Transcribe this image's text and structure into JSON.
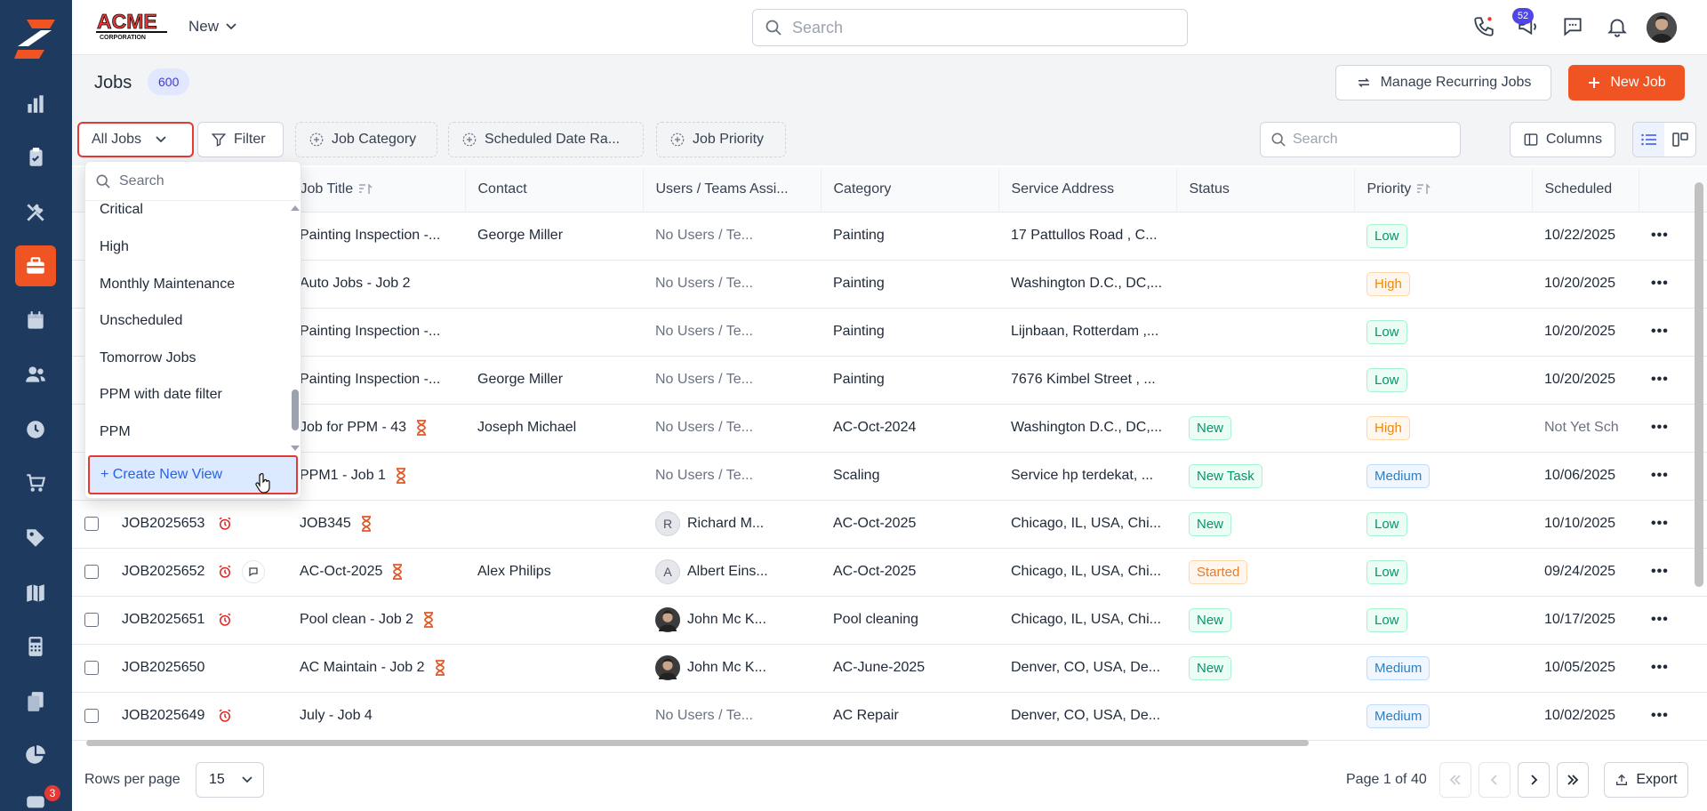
{
  "brand": {
    "logo_text": "ACME",
    "logo_subtext": "CORPORATION",
    "accent": "#f05423",
    "sidebar_bg": "#1e3a5f"
  },
  "sidebar": {
    "items": [
      {
        "icon": "bar-chart-icon"
      },
      {
        "icon": "clipboard-icon"
      },
      {
        "icon": "tools-icon"
      },
      {
        "icon": "briefcase-icon",
        "active": true
      },
      {
        "icon": "calendar-icon"
      },
      {
        "icon": "users-icon"
      },
      {
        "icon": "clock-icon"
      },
      {
        "icon": "cart-icon"
      },
      {
        "icon": "tag-icon"
      },
      {
        "icon": "map-icon"
      },
      {
        "icon": "calculator-icon"
      },
      {
        "icon": "documents-icon"
      },
      {
        "icon": "pie-chart-icon"
      },
      {
        "icon": "chat-icon"
      }
    ],
    "chat_badge": "3"
  },
  "topbar": {
    "new_label": "New",
    "search_placeholder": "Search",
    "notifications_count": "52"
  },
  "header": {
    "title": "Jobs",
    "count": "600",
    "recurring_label": "Manage Recurring Jobs",
    "new_job_label": "New Job"
  },
  "toolbar": {
    "view_label": "All Jobs",
    "filter_label": "Filter",
    "job_category_label": "Job Category",
    "scheduled_date_label": "Scheduled Date Ra...",
    "job_priority_label": "Job Priority",
    "search_placeholder": "Search",
    "columns_label": "Columns"
  },
  "views_dropdown": {
    "search_placeholder": "Search",
    "items": [
      "Critical",
      "High",
      "Monthly Maintenance",
      "Unscheduled",
      "Tomorrow Jobs",
      "PPM with date filter",
      "PPM"
    ],
    "create_label": "+ Create New View"
  },
  "table": {
    "columns": [
      "Job Title",
      "Contact",
      "Users / Teams Assi...",
      "Category",
      "Service Address",
      "Status",
      "Priority",
      "Scheduled"
    ],
    "rows": [
      {
        "id": "",
        "title": "Painting Inspection -...",
        "contact": "George Miller",
        "user": "No Users / Te...",
        "category": "Painting",
        "address": "17 Pattullos Road , C...",
        "status": "",
        "priority": "Low",
        "scheduled": "10/22/2025"
      },
      {
        "id": "",
        "title": "Auto Jobs - Job 2",
        "contact": "",
        "user": "No Users / Te...",
        "category": "Painting",
        "address": "Washington D.C., DC,...",
        "status": "",
        "priority": "High",
        "scheduled": "10/20/2025"
      },
      {
        "id": "",
        "title": "Painting Inspection -...",
        "contact": "",
        "user": "No Users / Te...",
        "category": "Painting",
        "address": "Lijnbaan, Rotterdam ,...",
        "status": "",
        "priority": "Low",
        "scheduled": "10/20/2025"
      },
      {
        "id": "",
        "title": "Painting Inspection -...",
        "contact": "George Miller",
        "user": "No Users / Te...",
        "category": "Painting",
        "address": "7676 Kimbel Street , ...",
        "status": "",
        "priority": "Low",
        "scheduled": "10/20/2025"
      },
      {
        "id": "",
        "title": "Job for PPM - 43",
        "contact": "Joseph Michael",
        "user": "No Users / Te...",
        "category": "AC-Oct-2024",
        "address": "Washington D.C., DC,...",
        "status": "New",
        "priority": "High",
        "scheduled": "Not Yet Sch"
      },
      {
        "id": "",
        "title": "PPM1 - Job 1",
        "contact": "",
        "user": "No Users / Te...",
        "category": "Scaling",
        "address": "Service hp terdekat, ...",
        "status": "New Task",
        "priority": "Medium",
        "scheduled": "10/06/2025"
      },
      {
        "id": "JOB2025653",
        "title": "JOB345",
        "contact": "",
        "user": "Richard M...",
        "user_initial": "R",
        "category": "AC-Oct-2025",
        "address": "Chicago, IL, USA, Chi...",
        "status": "New",
        "priority": "Low",
        "scheduled": "10/10/2025"
      },
      {
        "id": "JOB2025652",
        "title": "AC-Oct-2025",
        "contact": "Alex Philips",
        "user": "Albert Eins...",
        "user_initial": "A",
        "category": "AC-Oct-2025",
        "address": "Chicago, IL, USA, Chi...",
        "status": "Started",
        "priority": "Low",
        "scheduled": "09/24/2025"
      },
      {
        "id": "JOB2025651",
        "title": "Pool clean - Job 2",
        "contact": "",
        "user": "John Mc K...",
        "category": "Pool cleaning",
        "address": "Chicago, IL, USA, Chi...",
        "status": "New",
        "priority": "Low",
        "scheduled": "10/17/2025"
      },
      {
        "id": "JOB2025650",
        "title": "AC Maintain - Job 2",
        "contact": "",
        "user": "John Mc K...",
        "category": "AC-June-2025",
        "address": "Denver, CO, USA, De...",
        "status": "New",
        "priority": "Medium",
        "scheduled": "10/05/2025"
      },
      {
        "id": "JOB2025649",
        "title": "July - Job 4",
        "contact": "",
        "user": "No Users / Te...",
        "category": "AC Repair",
        "address": "Denver, CO, USA, De...",
        "status": "",
        "priority": "Medium",
        "scheduled": "10/02/2025"
      }
    ]
  },
  "footer": {
    "rows_label": "Rows per page",
    "rows_value": "15",
    "page_info": "Page 1 of 40",
    "export_label": "Export"
  }
}
